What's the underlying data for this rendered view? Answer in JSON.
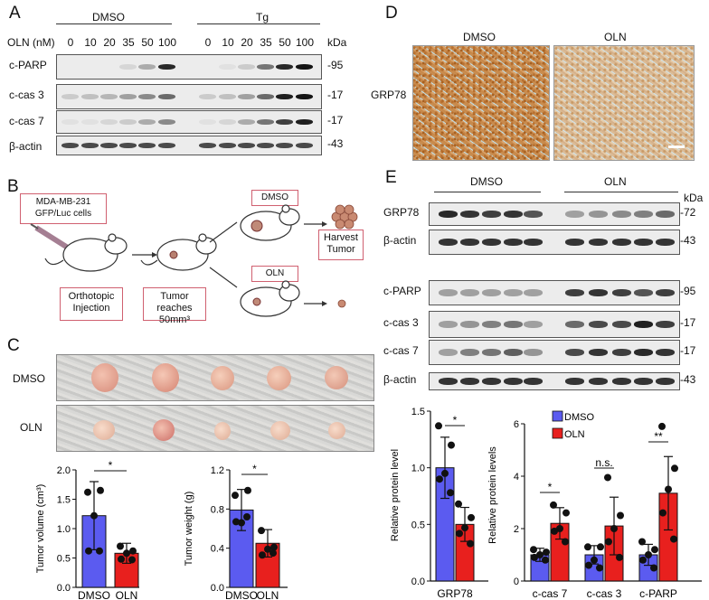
{
  "panels": {
    "A": "A",
    "B": "B",
    "C": "C",
    "D": "D",
    "E": "E"
  },
  "panelA": {
    "group_dmso": "DMSO",
    "group_tg": "Tg",
    "dose_label": "OLN (nM)",
    "doses": [
      "0",
      "10",
      "20",
      "35",
      "50",
      "100"
    ],
    "kda": "kDa",
    "rows": [
      "c-PARP",
      "c-cas 3",
      "c-cas 7",
      "β-actin"
    ],
    "markers": [
      "95",
      "17",
      "17",
      "43"
    ]
  },
  "panelB": {
    "cells_box": "MDA-MB-231 GFP/Luc cells",
    "dmso_box": "DMSO",
    "oln_box": "OLN",
    "harvest_box": "Harvest Tumor",
    "step1_box": "Orthotopic Injection",
    "step2_box": "Tumor reaches 50mm³"
  },
  "panelC": {
    "row_dmso": "DMSO",
    "row_oln": "OLN",
    "vol_ylabel": "Tumor volume (cm³)",
    "wt_ylabel": "Tumor weight (g)",
    "vol_yticks": [
      "0.0",
      "0.5",
      "1.0",
      "1.5",
      "2.0"
    ],
    "wt_yticks": [
      "0.0",
      "0.4",
      "0.8",
      "1.2"
    ],
    "xcats": [
      "DMSO",
      "OLN"
    ],
    "sig": "*"
  },
  "panelD": {
    "dmso": "DMSO",
    "oln": "OLN",
    "row": "GRP78"
  },
  "panelE": {
    "group_dmso": "DMSO",
    "group_oln": "OLN",
    "kda": "kDa",
    "rows1": [
      "GRP78",
      "β-actin"
    ],
    "markers1": [
      "72",
      "43"
    ],
    "rows2": [
      "c-PARP",
      "c-cas 3",
      "c-cas 7",
      "β-actin"
    ],
    "markers2": [
      "95",
      "17",
      "17",
      "43"
    ],
    "legend_dmso": "DMSO",
    "legend_oln": "OLN",
    "ylabel1": "Relative protein level",
    "ylabel2": "Relative protein levels",
    "y1ticks": [
      "0.0",
      "0.5",
      "1.0",
      "1.5"
    ],
    "y2ticks": [
      "0",
      "2",
      "4",
      "6"
    ],
    "cat1": "GRP78",
    "cats2": [
      "c-cas 7",
      "c-cas 3",
      "c-PARP"
    ],
    "sig1": "*",
    "sig2": [
      "*",
      "n.s.",
      "**"
    ]
  },
  "colors": {
    "dmso": "#5b5bf0",
    "oln": "#e8201e"
  },
  "chart_data": [
    {
      "type": "bar",
      "ylabel": "Tumor volume (cm³)",
      "categories": [
        "DMSO",
        "OLN"
      ],
      "ylim": [
        0,
        2.0
      ],
      "values": [
        1.22,
        0.58
      ],
      "sd": [
        0.58,
        0.17
      ],
      "points": [
        [
          1.62,
          1.65,
          1.22,
          0.62,
          0.62
        ],
        [
          0.7,
          0.62,
          0.58,
          0.48,
          0.47
        ]
      ]
    },
    {
      "type": "bar",
      "ylabel": "Tumor weight (g)",
      "categories": [
        "DMSO",
        "OLN"
      ],
      "ylim": [
        0,
        1.2
      ],
      "values": [
        0.79,
        0.45
      ],
      "sd": [
        0.21,
        0.14
      ],
      "points": [
        [
          0.94,
          0.99,
          0.66,
          0.67,
          0.72
        ],
        [
          0.58,
          0.41,
          0.39,
          0.33,
          0.35
        ]
      ]
    },
    {
      "type": "bar",
      "ylabel": "Relative protein level",
      "categories": [
        "GRP78"
      ],
      "ylim": [
        0,
        1.5
      ],
      "series": [
        {
          "name": "DMSO",
          "values": [
            1.0
          ],
          "sd": [
            0.27
          ],
          "points": [
            1.37,
            1.2,
            0.95,
            0.9,
            0.78
          ]
        },
        {
          "name": "OLN",
          "values": [
            0.5
          ],
          "sd": [
            0.15
          ],
          "points": [
            0.68,
            0.56,
            0.47,
            0.42,
            0.33
          ]
        }
      ]
    },
    {
      "type": "bar",
      "ylabel": "Relative protein levels",
      "categories": [
        "c-cas 7",
        "c-cas 3",
        "c-PARP"
      ],
      "ylim": [
        0,
        6
      ],
      "series": [
        {
          "name": "DMSO",
          "values": [
            1.0,
            1.0,
            1.0
          ],
          "sd": [
            0.25,
            0.35,
            0.4
          ],
          "points": [
            [
              1.2,
              1.1,
              1.0,
              0.9,
              0.8
            ],
            [
              1.3,
              1.3,
              0.8,
              0.6,
              0.5
            ],
            [
              1.5,
              1.2,
              1.0,
              0.8,
              0.5
            ]
          ]
        },
        {
          "name": "OLN",
          "values": [
            2.2,
            2.1,
            3.35
          ],
          "sd": [
            0.6,
            1.1,
            1.4
          ],
          "points": [
            [
              2.9,
              2.6,
              2.0,
              1.9,
              1.5
            ],
            [
              3.95,
              2.5,
              2.0,
              1.5,
              0.9
            ],
            [
              5.9,
              4.3,
              3.5,
              2.6,
              1.6
            ]
          ]
        }
      ]
    }
  ]
}
